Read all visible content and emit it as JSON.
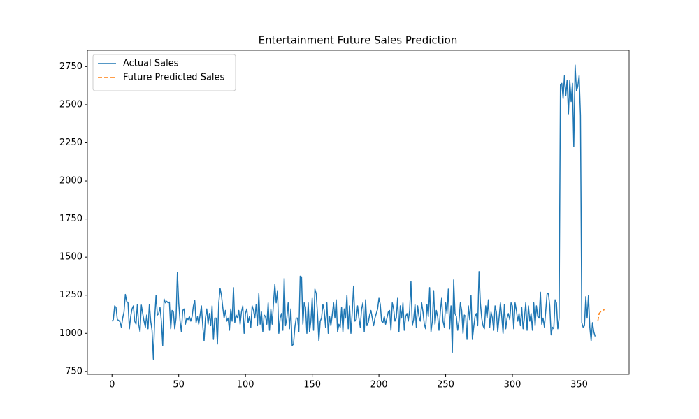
{
  "chart_data": {
    "type": "line",
    "title": "Entertainment Future Sales Prediction",
    "xlim": [
      -18.45,
      387.45
    ],
    "ylim": [
      731,
      2857
    ],
    "xticks": [
      0,
      50,
      100,
      150,
      200,
      250,
      300,
      350
    ],
    "yticks": [
      750,
      1000,
      1250,
      1500,
      1750,
      2000,
      2250,
      2500,
      2750
    ],
    "legend": "upper left",
    "series": [
      {
        "name": "Actual Sales",
        "color": "#1f77b4",
        "linestyle": "solid",
        "x": [
          0,
          1,
          2,
          3,
          4,
          5,
          6,
          7,
          8,
          9,
          10,
          11,
          12,
          13,
          14,
          15,
          16,
          17,
          18,
          19,
          20,
          21,
          22,
          23,
          24,
          25,
          26,
          27,
          28,
          29,
          30,
          31,
          32,
          33,
          34,
          35,
          36,
          37,
          38,
          39,
          40,
          41,
          42,
          43,
          44,
          45,
          46,
          47,
          48,
          49,
          50,
          51,
          52,
          53,
          54,
          55,
          56,
          57,
          58,
          59,
          60,
          61,
          62,
          63,
          64,
          65,
          66,
          67,
          68,
          69,
          70,
          71,
          72,
          73,
          74,
          75,
          76,
          77,
          78,
          79,
          80,
          81,
          82,
          83,
          84,
          85,
          86,
          87,
          88,
          89,
          90,
          91,
          92,
          93,
          94,
          95,
          96,
          97,
          98,
          99,
          100,
          101,
          102,
          103,
          104,
          105,
          106,
          107,
          108,
          109,
          110,
          111,
          112,
          113,
          114,
          115,
          116,
          117,
          118,
          119,
          120,
          121,
          122,
          123,
          124,
          125,
          126,
          127,
          128,
          129,
          130,
          131,
          132,
          133,
          134,
          135,
          136,
          137,
          138,
          139,
          140,
          141,
          142,
          143,
          144,
          145,
          146,
          147,
          148,
          149,
          150,
          151,
          152,
          153,
          154,
          155,
          156,
          157,
          158,
          159,
          160,
          161,
          162,
          163,
          164,
          165,
          166,
          167,
          168,
          169,
          170,
          171,
          172,
          173,
          174,
          175,
          176,
          177,
          178,
          179,
          180,
          181,
          182,
          183,
          184,
          185,
          186,
          187,
          188,
          189,
          190,
          191,
          192,
          193,
          194,
          195,
          196,
          197,
          198,
          199,
          200,
          201,
          202,
          203,
          204,
          205,
          206,
          207,
          208,
          209,
          210,
          211,
          212,
          213,
          214,
          215,
          216,
          217,
          218,
          219,
          220,
          221,
          222,
          223,
          224,
          225,
          226,
          227,
          228,
          229,
          230,
          231,
          232,
          233,
          234,
          235,
          236,
          237,
          238,
          239,
          240,
          241,
          242,
          243,
          244,
          245,
          246,
          247,
          248,
          249,
          250,
          251,
          252,
          253,
          254,
          255,
          256,
          257,
          258,
          259,
          260,
          261,
          262,
          263,
          264,
          265,
          266,
          267,
          268,
          269,
          270,
          271,
          272,
          273,
          274,
          275,
          276,
          277,
          278,
          279,
          280,
          281,
          282,
          283,
          284,
          285,
          286,
          287,
          288,
          289,
          290,
          291,
          292,
          293,
          294,
          295,
          296,
          297,
          298,
          299,
          300,
          301,
          302,
          303,
          304,
          305,
          306,
          307,
          308,
          309,
          310,
          311,
          312,
          313,
          314,
          315,
          316,
          317,
          318,
          319,
          320,
          321,
          322,
          323,
          324,
          325,
          326,
          327,
          328,
          329,
          330,
          331,
          332,
          333,
          334,
          335,
          336,
          337,
          338,
          339,
          340,
          341,
          342,
          343,
          344,
          345,
          346,
          347,
          348,
          349,
          350,
          351,
          352,
          353,
          354,
          355,
          356,
          357,
          358,
          359,
          360,
          361,
          362
        ],
        "values": [
          1080,
          1090,
          1180,
          1170,
          1090,
          1085,
          1075,
          1040,
          1100,
          1140,
          1255,
          1210,
          1200,
          1030,
          1110,
          1160,
          1180,
          1080,
          1060,
          1190,
          1060,
          1010,
          1185,
          1130,
          1080,
          1040,
          1120,
          1030,
          1190,
          1080,
          1020,
          830,
          1100,
          1250,
          1120,
          1130,
          1170,
          1080,
          920,
          1225,
          1200,
          1210,
          1200,
          1205,
          1030,
          1150,
          1140,
          1030,
          1100,
          1400,
          1200,
          1080,
          1010,
          1150,
          1160,
          1060,
          1100,
          1090,
          1110,
          1080,
          1110,
          1180,
          1215,
          1070,
          1110,
          1060,
          1120,
          1180,
          1050,
          950,
          1100,
          1160,
          1060,
          1130,
          1050,
          1180,
          960,
          1100,
          1100,
          930,
          1200,
          1295,
          1250,
          1170,
          1100,
          1150,
          1080,
          1100,
          1020,
          1160,
          1080,
          1300,
          1070,
          1120,
          1100,
          1150,
          1060,
          1140,
          1180,
          1000,
          1130,
          1160,
          1070,
          1110,
          1040,
          1180,
          1150,
          1100,
          1190,
          1050,
          1260,
          1060,
          1140,
          1010,
          1120,
          1110,
          1060,
          1200,
          1020,
          1160,
          1060,
          1200,
          1320,
          1200,
          1280,
          1000,
          1100,
          1130,
          1020,
          1360,
          1050,
          1100,
          1200,
          1030,
          1160,
          920,
          930,
          1040,
          1100,
          1100,
          1010,
          1375,
          1370,
          1060,
          1200,
          1170,
          1000,
          1200,
          1010,
          1080,
          1230,
          1020,
          1290,
          1260,
          1120,
          950,
          1080,
          1100,
          1190,
          1150,
          1040,
          1200,
          1000,
          1110,
          1050,
          1120,
          1200,
          1100,
          1220,
          1010,
          1060,
          1040,
          1170,
          1010,
          1160,
          1100,
          1250,
          1030,
          1180,
          1000,
          1140,
          1310,
          1080,
          1090,
          1180,
          1100,
          1040,
          1160,
          1200,
          1010,
          1220,
          1050,
          1070,
          1120,
          1150,
          1100,
          1050,
          1100,
          1130,
          1160,
          1230,
          1190,
          1080,
          1070,
          1110,
          1060,
          1100,
          1140,
          1150,
          1020,
          1200,
          1160,
          1080,
          1100,
          1230,
          1010,
          1180,
          1100,
          1200,
          1020,
          1110,
          1130,
          1080,
          1150,
          1340,
          1050,
          1090,
          1190,
          1040,
          1180,
          1110,
          1080,
          1200,
          1140,
          1060,
          1030,
          1190,
          1110,
          1300,
          1010,
          1080,
          1280,
          1060,
          1150,
          1110,
          1020,
          1140,
          1230,
          1080,
          1040,
          1200,
          1130,
          1290,
          1030,
          1180,
          875,
          1350,
          1130,
          1110,
          1020,
          1080,
          1200,
          1150,
          1000,
          1120,
          1110,
          960,
          1180,
          1090,
          1250,
          960,
          1040,
          1110,
          1130,
          1050,
          1405,
          1200,
          1100,
          1050,
          1030,
          1180,
          1100,
          1220,
          1040,
          1140,
          1100,
          1020,
          1180,
          1140,
          1010,
          1100,
          1200,
          1110,
          1000,
          1190,
          1030,
          1100,
          1130,
          1090,
          1200,
          1180,
          1030,
          1200,
          1150,
          1080,
          1130,
          1050,
          1170,
          1030,
          1100,
          1200,
          1020,
          1180,
          1080,
          1130,
          1020,
          1200,
          1050,
          1180,
          1110,
          1100,
          1270,
          1060,
          1100,
          1040,
          1150,
          1260,
          1260,
          1180,
          990,
          1040,
          1030,
          1220,
          1200,
          1030,
          1100,
          2630,
          2640,
          2540,
          2690,
          2560,
          2660,
          2440,
          2660,
          2520,
          2640,
          2225,
          2760,
          2590,
          2620,
          2690,
          2430,
          1070,
          1040,
          1050,
          1240,
          1100,
          1250,
          1040,
          950,
          1070,
          1010,
          980
        ]
      },
      {
        "name": "Future Predicted Sales",
        "color": "#ff7f0e",
        "linestyle": "dashed",
        "x": [
          364,
          365,
          366,
          367,
          368,
          369
        ],
        "values": [
          1080,
          1130,
          1140,
          1148,
          1152,
          1155
        ]
      }
    ]
  }
}
